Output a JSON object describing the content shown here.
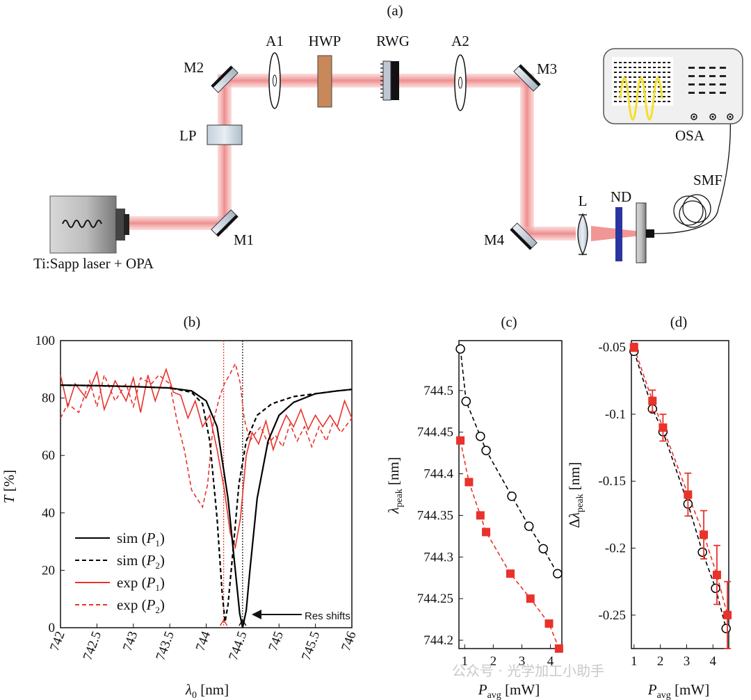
{
  "setup": {
    "panel_label": "(a)",
    "components": {
      "m1": "M1",
      "m2": "M2",
      "m3": "M3",
      "m4": "M4",
      "lp": "LP",
      "a1": "A1",
      "hwp": "HWP",
      "rwg": "RWG",
      "a2": "A2",
      "l": "L",
      "nd": "ND",
      "smf": "SMF",
      "osa": "OSA",
      "laser": "Ti:Sapp laser + OPA"
    },
    "colors": {
      "beam": "#f08a8a",
      "hwp": "#c8885a",
      "nd": "#2a35a0",
      "trace": "#f5e028"
    }
  },
  "chart_data": [
    {
      "panel": "(b)",
      "type": "line",
      "ylabel": "T [%]",
      "xlabel": "λ0 [nm]",
      "xlim": [
        742,
        746
      ],
      "ylim": [
        0,
        100
      ],
      "xticks": [
        "742",
        "742.5",
        "743",
        "743.5",
        "744",
        "744.5",
        "745",
        "745.5",
        "746"
      ],
      "yticks": [
        "0",
        "20",
        "40",
        "60",
        "80",
        "100"
      ],
      "legend": [
        "sim (P1)",
        "sim (P2)",
        "exp (P1)",
        "exp (P2)"
      ],
      "legend_placement": "bottom-left",
      "annotation": "Res shifts",
      "marker_lines": {
        "red_dotted": 744.24,
        "black_dotted": 744.5
      },
      "series": [
        {
          "name": "sim (P1)",
          "color": "#000000",
          "dash": "solid",
          "x": [
            742,
            742.5,
            743,
            743.5,
            743.8,
            744,
            744.15,
            744.3,
            744.4,
            744.46,
            744.5,
            744.55,
            744.6,
            744.7,
            744.85,
            745,
            745.2,
            745.5,
            745.8,
            746
          ],
          "y": [
            84.5,
            84.3,
            84,
            83.5,
            82.5,
            79,
            70,
            45,
            20,
            5,
            0,
            6,
            20,
            45,
            65,
            74,
            78.5,
            81.5,
            82.5,
            83
          ]
        },
        {
          "name": "sim (P2)",
          "color": "#000000",
          "dash": "dashed",
          "x": [
            742,
            742.5,
            743,
            743.5,
            743.8,
            743.95,
            744.05,
            744.15,
            744.22,
            744.26,
            744.3,
            744.38,
            744.45,
            744.55,
            744.7,
            744.9,
            745.2,
            745.5,
            745.8,
            746
          ],
          "y": [
            84.5,
            84.3,
            84,
            83.5,
            82,
            78,
            65,
            38,
            12,
            2,
            8,
            30,
            50,
            65,
            74,
            78,
            80.5,
            81.5,
            82.5,
            83
          ]
        },
        {
          "name": "exp (P1)",
          "color": "#e8322a",
          "dash": "solid",
          "x": [
            742,
            742.1,
            742.2,
            742.35,
            742.5,
            742.6,
            742.75,
            742.9,
            743,
            743.1,
            743.2,
            743.3,
            743.45,
            743.55,
            743.65,
            743.75,
            743.85,
            743.95,
            744.05,
            744.15,
            744.25,
            744.33,
            744.4,
            744.47,
            744.55,
            744.63,
            744.72,
            744.82,
            744.92,
            745,
            745.1,
            745.2,
            745.3,
            745.4,
            745.5,
            745.6,
            745.7,
            745.8,
            745.9,
            746
          ],
          "y": [
            88,
            77,
            85,
            80,
            89,
            76,
            86,
            79,
            87,
            75,
            88,
            79,
            90,
            82,
            81,
            73,
            79,
            70,
            74,
            62,
            48,
            33,
            28,
            38,
            60,
            68,
            64,
            72,
            62,
            68,
            74,
            70,
            76,
            69,
            74,
            70,
            74,
            70,
            79,
            73
          ]
        },
        {
          "name": "exp (P2)",
          "color": "#e8322a",
          "dash": "dashed",
          "x": [
            742,
            742.1,
            742.25,
            742.4,
            742.5,
            742.6,
            742.75,
            742.9,
            743,
            743.1,
            743.25,
            743.35,
            743.5,
            743.6,
            743.7,
            743.8,
            743.9,
            743.95,
            744.02,
            744.1,
            744.18,
            744.25,
            744.32,
            744.4,
            744.47,
            744.52,
            744.6,
            744.68,
            744.75,
            744.85,
            744.95,
            745.05,
            745.15,
            745.25,
            745.35,
            745.45,
            745.55,
            745.65,
            745.75,
            745.85,
            746
          ],
          "y": [
            73,
            78,
            75,
            86,
            77,
            88,
            79,
            85,
            77,
            87,
            85,
            88,
            85,
            72,
            62,
            48,
            44,
            42,
            50,
            72,
            80,
            85,
            88,
            92,
            85,
            73,
            65,
            68,
            70,
            64,
            67,
            63,
            71,
            65,
            70,
            63,
            70,
            65,
            72,
            68,
            73
          ]
        }
      ]
    },
    {
      "panel": "(c)",
      "type": "scatter",
      "ylabel": "λpeak [nm]",
      "xlabel": "Pavg [mW]",
      "xlim": [
        0.8,
        4.4
      ],
      "ylim": [
        744.19,
        744.56
      ],
      "xticks": [
        "1",
        "2",
        "3",
        "4"
      ],
      "yticks": [
        "744.2",
        "744.25",
        "744.3",
        "744.35",
        "744.4",
        "744.45",
        "744.5"
      ],
      "series": [
        {
          "name": "",
          "color": "#000000",
          "marker": "circle",
          "line": "dashed",
          "x": [
            0.85,
            1.05,
            1.55,
            1.75,
            2.65,
            3.25,
            3.75,
            4.25
          ],
          "y": [
            744.55,
            744.487,
            744.445,
            744.428,
            744.373,
            744.337,
            744.31,
            744.28
          ]
        },
        {
          "name": "",
          "color": "#e8322a",
          "marker": "square",
          "line": "dashed",
          "x": [
            0.85,
            1.15,
            1.55,
            1.75,
            2.6,
            3.3,
            3.95,
            4.3
          ],
          "y": [
            744.44,
            744.39,
            744.35,
            744.33,
            744.28,
            744.25,
            744.22,
            744.19
          ]
        }
      ]
    },
    {
      "panel": "(d)",
      "type": "scatter",
      "ylabel": "Δλpeak [nm]",
      "xlabel": "Pavg [mW]",
      "xlim": [
        0.9,
        4.6
      ],
      "ylim": [
        -0.275,
        -0.045
      ],
      "xticks": [
        "1",
        "2",
        "3",
        "4"
      ],
      "yticks": [
        "-0.05",
        "-0.1",
        "-0.15",
        "-0.2",
        "-0.25"
      ],
      "series": [
        {
          "name": "",
          "color": "#000000",
          "marker": "circle",
          "line": "dashed",
          "x": [
            1,
            1.7,
            2.1,
            3.05,
            3.6,
            4.1,
            4.5
          ],
          "y": [
            -0.053,
            -0.096,
            -0.113,
            -0.167,
            -0.203,
            -0.23,
            -0.26
          ]
        },
        {
          "name": "",
          "color": "#e8322a",
          "marker": "square",
          "line": "dashed",
          "x": [
            1,
            1.7,
            2.1,
            3.05,
            3.65,
            4.15,
            4.55
          ],
          "y": [
            -0.05,
            -0.09,
            -0.11,
            -0.16,
            -0.19,
            -0.22,
            -0.25
          ],
          "err": [
            0.003,
            0.008,
            0.01,
            0.016,
            0.018,
            0.022,
            0.025
          ]
        }
      ]
    }
  ],
  "watermark": "公众号 · 光学加工小助手"
}
